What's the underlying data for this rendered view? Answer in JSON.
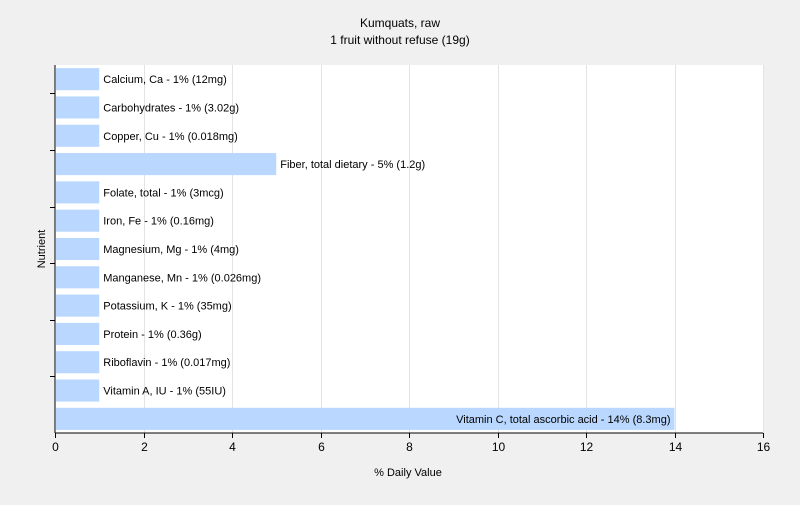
{
  "chart_data": {
    "type": "bar",
    "orientation": "horizontal",
    "title": "Kumquats, raw",
    "subtitle": "1 fruit without refuse (19g)",
    "xlabel": "% Daily Value",
    "ylabel": "Nutrient",
    "xlim": [
      0,
      16
    ],
    "xticks": [
      0,
      2,
      4,
      6,
      8,
      10,
      12,
      14,
      16
    ],
    "grid": true,
    "bar_color": "#b9d7ff",
    "categories": [
      "Calcium, Ca",
      "Carbohydrates",
      "Copper, Cu",
      "Fiber, total dietary",
      "Folate, total",
      "Iron, Fe",
      "Magnesium, Mg",
      "Manganese, Mn",
      "Potassium, K",
      "Protein",
      "Riboflavin",
      "Vitamin A, IU",
      "Vitamin C, total ascorbic acid"
    ],
    "values": [
      1,
      1,
      1,
      5,
      1,
      1,
      1,
      1,
      1,
      1,
      1,
      1,
      14
    ],
    "labels": [
      "Calcium, Ca - 1% (12mg)",
      "Carbohydrates - 1% (3.02g)",
      "Copper, Cu - 1% (0.018mg)",
      "Fiber, total dietary - 5% (1.2g)",
      "Folate, total - 1% (3mcg)",
      "Iron, Fe - 1% (0.16mg)",
      "Magnesium, Mg - 1% (4mg)",
      "Manganese, Mn - 1% (0.026mg)",
      "Potassium, K - 1% (35mg)",
      "Protein - 1% (0.36g)",
      "Riboflavin - 1% (0.017mg)",
      "Vitamin A, IU - 1% (55IU)",
      "Vitamin C, total ascorbic acid - 14% (8.3mg)"
    ]
  }
}
